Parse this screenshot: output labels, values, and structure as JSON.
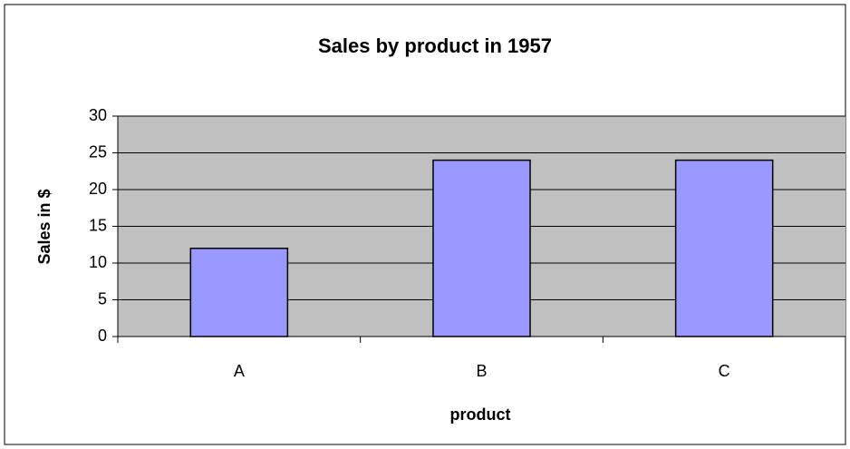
{
  "chart_data": {
    "type": "bar",
    "title": "Sales by product in 1957",
    "x_label": "product",
    "y_label": "Sales in $",
    "categories": [
      "A",
      "B",
      "C"
    ],
    "values": [
      12,
      24,
      24
    ],
    "color": "#9999ff",
    "ylim": [
      0,
      30
    ],
    "yticks": [
      0,
      5,
      10,
      15,
      20,
      25,
      30
    ],
    "grid": true
  }
}
